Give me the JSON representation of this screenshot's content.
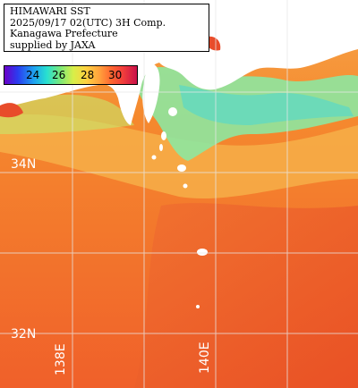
{
  "title": {
    "line1": "HIMAWARI SST",
    "line2": "2025/09/17 02(UTC) 3H Comp.",
    "line3": "Kanagawa Prefecture",
    "line4": "supplied by JAXA"
  },
  "colorbar": {
    "labels": [
      "24",
      "26",
      "28",
      "30"
    ]
  },
  "grid": {
    "lat_labels": [
      "34N",
      "32N"
    ],
    "lon_labels": [
      "138E",
      "140E"
    ]
  },
  "colors": {
    "warm_sea": "#f5892e",
    "hot_sea": "#f0602a",
    "cool_sea": "#8ee7a0",
    "land": "#ffffff",
    "grid": "#e8e8e8"
  }
}
